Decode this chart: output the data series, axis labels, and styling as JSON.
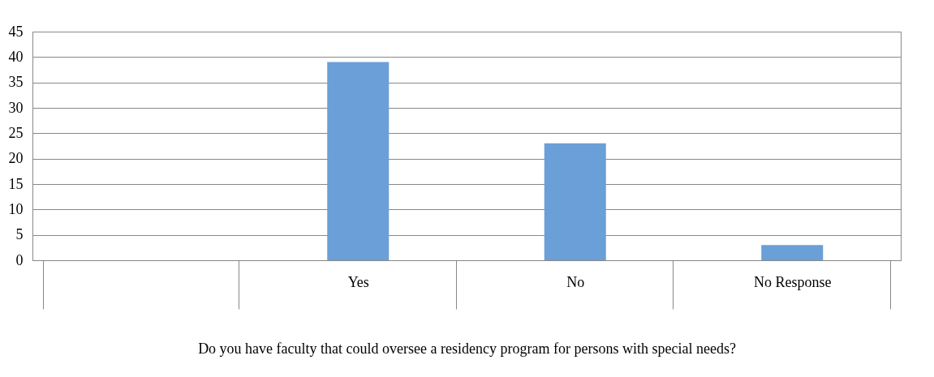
{
  "chart_data": {
    "type": "bar",
    "xlabel": "Do you have faculty that could oversee a residency program for persons with special needs?",
    "categories": [
      null,
      "Yes",
      "No",
      "No Response"
    ],
    "values": [
      null,
      39,
      23,
      3
    ],
    "color": "#6a9fd8",
    "ylim": [
      0,
      45
    ],
    "yticks": [
      0,
      5,
      10,
      15,
      20,
      25,
      30,
      35,
      40,
      45
    ],
    "grid": "y"
  }
}
